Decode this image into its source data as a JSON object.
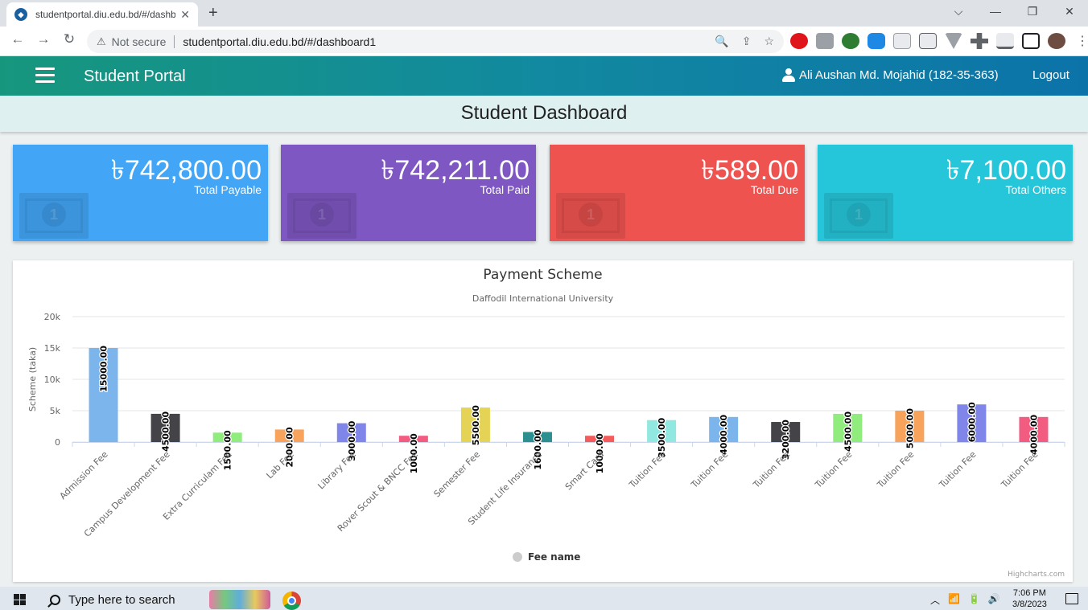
{
  "browser": {
    "tab_title": "studentportal.diu.edu.bd/#/dashb",
    "tab_close": "✕",
    "new_tab": "+",
    "window_controls": [
      "⌵",
      "—",
      "❐",
      "✕"
    ],
    "back": "←",
    "forward": "→",
    "reload": "↻",
    "security_icon": "⚠",
    "security_label": "Not secure",
    "url": "studentportal.diu.edu.bd/#/dashboard1",
    "omnibox_icons": [
      "🔍",
      "⇪",
      "☆"
    ]
  },
  "app": {
    "brand": "Student Portal",
    "user_name": "Ali Aushan Md. Mojahid (182-35-363)",
    "logout_label": "Logout",
    "dashboard_title": "Student Dashboard"
  },
  "cards": [
    {
      "amount": "৳742,800.00",
      "label": "Total Payable",
      "color": "#42a5f5"
    },
    {
      "amount": "৳742,211.00",
      "label": "Total Paid",
      "color": "#7e57c2"
    },
    {
      "amount": "৳589.00",
      "label": "Total Due",
      "color": "#ef5350"
    },
    {
      "amount": "৳7,100.00",
      "label": "Total Others",
      "color": "#26c6da"
    }
  ],
  "chart_data": {
    "type": "bar",
    "title": "Payment Scheme",
    "subtitle": "Daffodil International University",
    "ylabel": "Scheme (taka)",
    "ylim": [
      0,
      20000
    ],
    "yticks": [
      0,
      5000,
      10000,
      15000,
      20000
    ],
    "ytick_labels": [
      "0",
      "5k",
      "10k",
      "15k",
      "20k"
    ],
    "categories": [
      "Admission Fee",
      "Campus Development Fee",
      "Extra Curriculam Fee",
      "Lab Fee",
      "Library Fee",
      "Rover Scout & BNCC Fee",
      "Semester Fee",
      "Student Life Insurance",
      "Smart Card",
      "Tuition Fee",
      "Tuition Fee",
      "Tuition Fee",
      "Tuition Fee",
      "Tuition Fee",
      "Tuition Fee",
      "Tuition Fee"
    ],
    "values": [
      15000,
      4500,
      1500,
      2000,
      3000,
      1000,
      5500,
      1600,
      1000,
      3500,
      4000,
      3200,
      4500,
      5000,
      6000,
      4000
    ],
    "data_labels": [
      "15000.00",
      "4500.00",
      "1500.00",
      "2000.00",
      "3000.00",
      "1000.00",
      "5500.00",
      "1600.00",
      "1000.00",
      "3500.00",
      "4000.00",
      "3200.00",
      "4500.00",
      "5000.00",
      "6000.00",
      "4000.00"
    ],
    "colors": [
      "#7cb5ec",
      "#434348",
      "#90ed7d",
      "#f7a35c",
      "#8085e9",
      "#f15c80",
      "#e4d354",
      "#2b908f",
      "#f45b5b",
      "#91e8e1",
      "#7cb5ec",
      "#434348",
      "#90ed7d",
      "#f7a35c",
      "#8085e9",
      "#f15c80"
    ],
    "legend": "Fee name",
    "legend_placement": "bottom-center",
    "grid": true,
    "credits": "Highcharts.com"
  },
  "taskbar": {
    "search_placeholder": "Type here to search",
    "time": "7:06 PM",
    "date": "3/8/2023",
    "tray_icons": [
      "︿",
      "📶",
      "🔋",
      "🔊"
    ]
  }
}
